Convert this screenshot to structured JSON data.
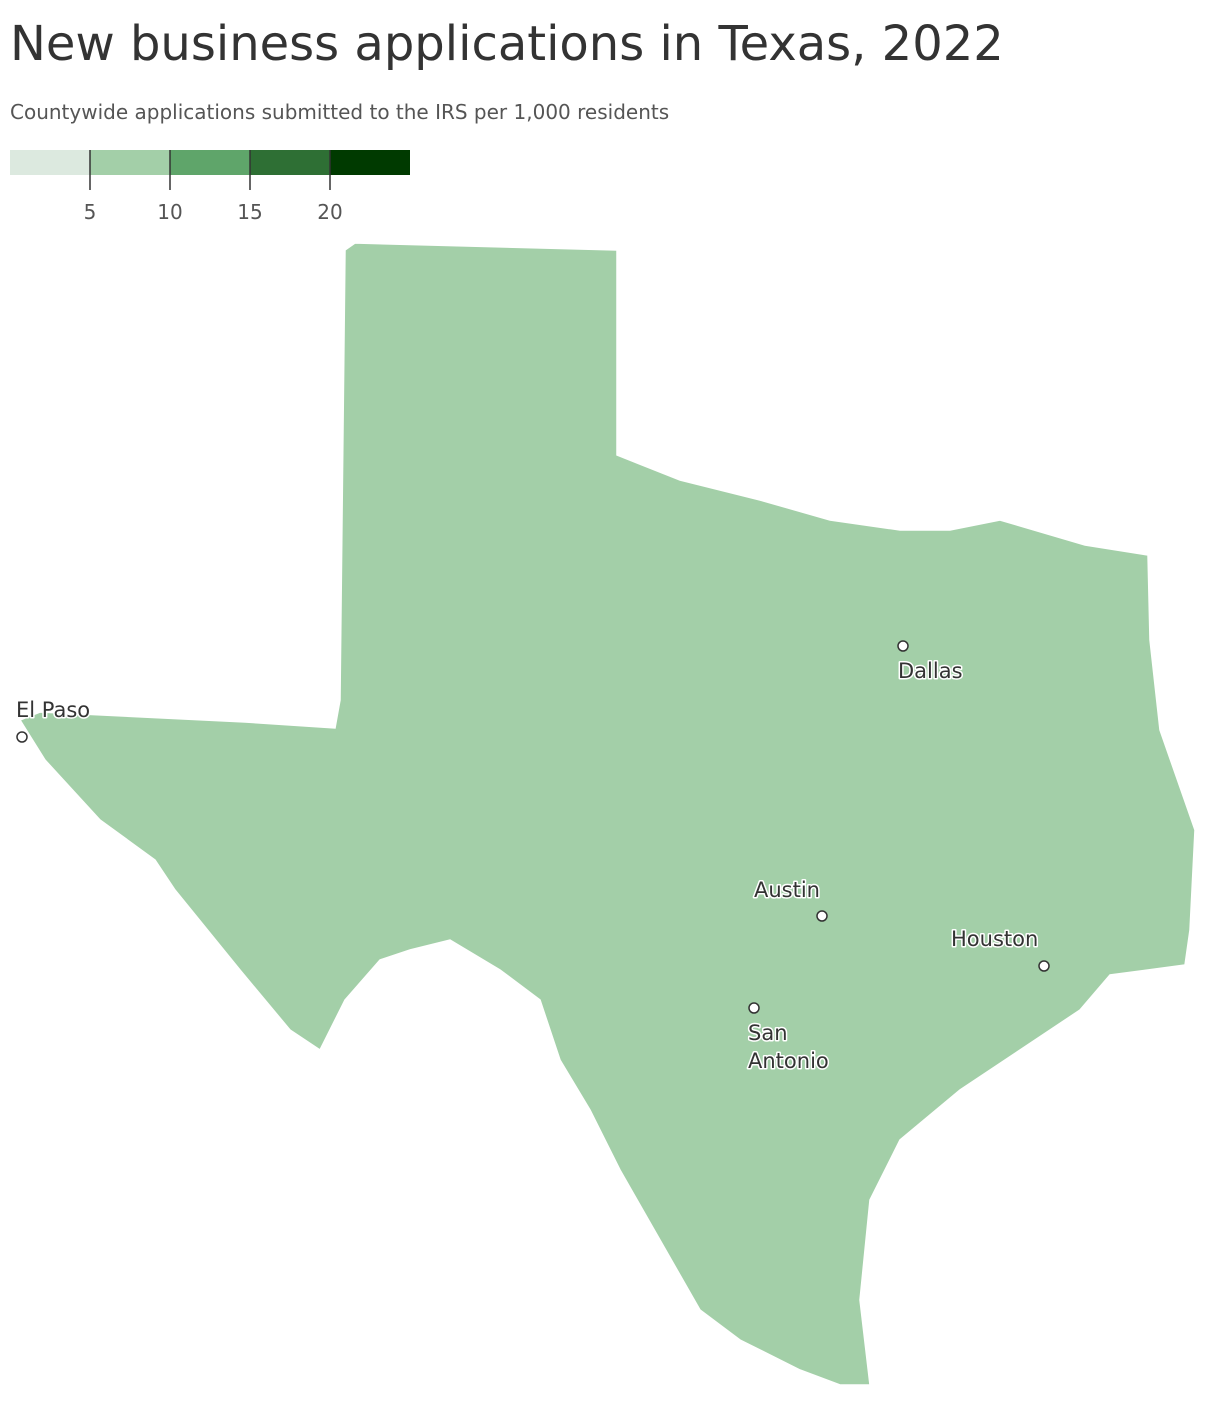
{
  "chart_data": {
    "type": "choropleth",
    "title": "New business applications in Texas, 2022",
    "subtitle": "Countywide applications submitted to the IRS per 1,000 residents",
    "legend": {
      "colors": [
        "#dce9df",
        "#a3cfa8",
        "#5fa56a",
        "#2e6f34",
        "#003a00"
      ],
      "xlim": [
        0,
        25
      ],
      "xticks": [
        5,
        10,
        15,
        20
      ]
    },
    "cities": [
      "El Paso",
      "Dallas",
      "Austin",
      "Houston",
      "San Antonio"
    ]
  }
}
